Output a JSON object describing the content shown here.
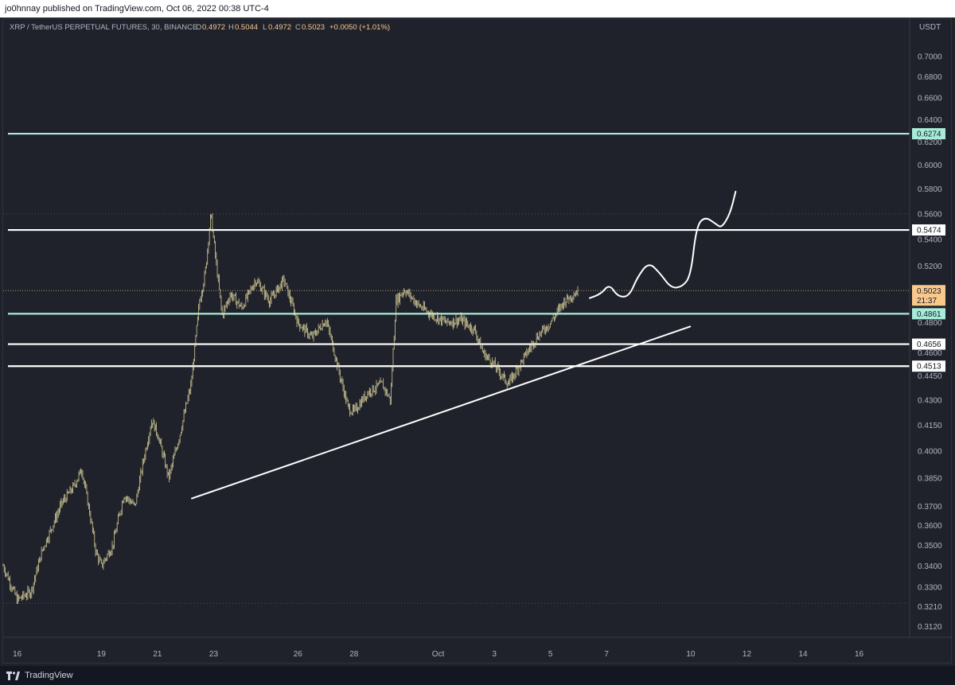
{
  "header": {
    "published": "jo0hnnay published on TradingView.com, Oct 06, 2022 00:38 UTC-4"
  },
  "legend": {
    "symbol": "XRP / TetherUS PERPETUAL FUTURES, 30, BINANCE",
    "o_label": "O",
    "o_value": "0.4972",
    "h_label": "H",
    "h_value": "0.5044",
    "l_label": "L",
    "l_value": "0.4972",
    "c_label": "C",
    "c_value": "0.5023",
    "change": "+0.0050 (+1.01%)"
  },
  "footer": {
    "brand": "TradingView"
  },
  "colors": {
    "background": "#20222b",
    "candle": "#e9e0a4",
    "cyan_level": "#a7ecd9",
    "white_level": "#ffffff",
    "last_price_badge": "#f9c98c",
    "axis_text": "#b2b5be"
  },
  "chart_data": {
    "type": "line",
    "title": "XRP / TetherUS PERPETUAL FUTURES, 30, BINANCE",
    "y_scale": "log",
    "currency": "USDT",
    "y_ticks": [
      "0.7000",
      "0.6800",
      "0.6600",
      "0.6400",
      "0.6200",
      "0.6000",
      "0.5800",
      "0.5600",
      "0.5400",
      "0.5200",
      "0.4800",
      "0.4600",
      "0.4450",
      "0.4300",
      "0.4150",
      "0.4000",
      "0.3850",
      "0.3700",
      "0.3600",
      "0.3500",
      "0.3400",
      "0.3300",
      "0.3210",
      "0.3120"
    ],
    "x_ticks": [
      "16",
      "19",
      "21",
      "23",
      "26",
      "28",
      "Oct",
      "3",
      "5",
      "7",
      "10",
      "12",
      "14",
      "16"
    ],
    "x_tick_days": [
      16,
      19,
      21,
      23,
      26,
      28,
      31,
      33,
      35,
      37,
      40,
      42,
      44,
      46
    ],
    "ylim": [
      0.308,
      0.72
    ],
    "xlim": [
      15.5,
      47.8
    ],
    "price_path": {
      "x_day": [
        15.5,
        16.0,
        16.5,
        16.9,
        17.2,
        17.6,
        18.0,
        18.3,
        18.6,
        18.8,
        19.0,
        19.4,
        19.8,
        20.2,
        20.5,
        20.8,
        21.0,
        21.4,
        21.8,
        22.2,
        22.5,
        22.7,
        22.9,
        23.1,
        23.3,
        23.6,
        24.0,
        24.5,
        25.0,
        25.5,
        26.0,
        26.5,
        27.0,
        27.2,
        27.5,
        27.8,
        28.0,
        28.5,
        29.0,
        29.3,
        29.5,
        29.8,
        30.3,
        30.8,
        31.3,
        31.8,
        32.3,
        32.6,
        33.0,
        33.5,
        34.0,
        34.5,
        35.0,
        35.5,
        36.0
      ],
      "close": [
        0.34,
        0.324,
        0.328,
        0.348,
        0.358,
        0.372,
        0.38,
        0.39,
        0.365,
        0.347,
        0.34,
        0.35,
        0.376,
        0.37,
        0.395,
        0.418,
        0.41,
        0.385,
        0.41,
        0.44,
        0.495,
        0.515,
        0.56,
        0.52,
        0.485,
        0.5,
        0.49,
        0.51,
        0.495,
        0.51,
        0.48,
        0.47,
        0.482,
        0.468,
        0.445,
        0.425,
        0.423,
        0.435,
        0.44,
        0.43,
        0.495,
        0.503,
        0.492,
        0.485,
        0.48,
        0.482,
        0.475,
        0.46,
        0.452,
        0.44,
        0.455,
        0.47,
        0.48,
        0.495,
        0.5023
      ]
    },
    "candles_timeframe": "30",
    "last_price": "0.5023",
    "countdown": "21:37",
    "horizontal_levels": [
      {
        "value": "0.6274",
        "style": "cyan"
      },
      {
        "value": "0.5474",
        "style": "white"
      },
      {
        "value": "0.4861",
        "style": "cyan"
      },
      {
        "value": "0.4656",
        "style": "white"
      },
      {
        "value": "0.4513",
        "style": "white"
      }
    ],
    "trendlines": [
      {
        "from": {
          "x_day": 22.2,
          "price": 0.374
        },
        "to": {
          "x_day": 40.0,
          "price": 0.4775
        }
      }
    ],
    "projection_path": {
      "x_day": [
        36.4,
        36.8,
        37.1,
        37.4,
        37.8,
        38.1,
        38.5,
        38.9,
        39.3,
        39.7,
        40.0,
        40.2,
        40.5,
        40.9,
        41.1,
        41.4,
        41.6
      ],
      "price": [
        0.497,
        0.5,
        0.507,
        0.498,
        0.498,
        0.512,
        0.523,
        0.515,
        0.504,
        0.505,
        0.513,
        0.55,
        0.558,
        0.552,
        0.549,
        0.56,
        0.578
      ]
    },
    "grid": false
  }
}
